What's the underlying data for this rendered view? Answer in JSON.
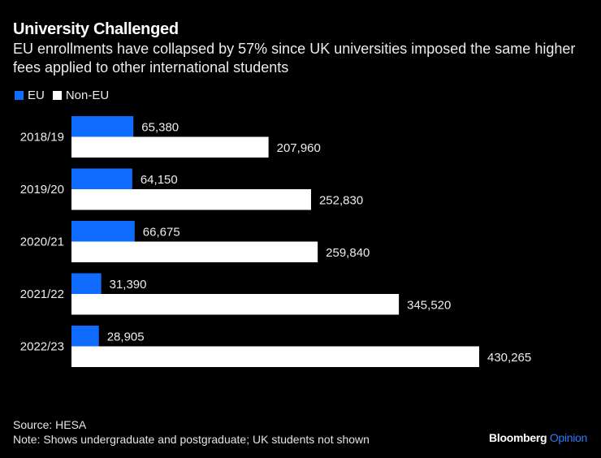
{
  "header": {
    "title": "University Challenged",
    "subtitle": "EU enrollments have collapsed by 57% since UK universities imposed the same higher fees applied to other international students"
  },
  "legend": [
    {
      "label": "EU",
      "color": "#0f6cff"
    },
    {
      "label": "Non-EU",
      "color": "#ffffff"
    }
  ],
  "footer": {
    "source": "Source: HESA",
    "note": "Note: Shows undergraduate and postgraduate; UK students not shown"
  },
  "brand": {
    "name": "Bloomberg",
    "section": "Opinion",
    "section_color": "#2f7bf5"
  },
  "chart_data": {
    "type": "bar",
    "orientation": "horizontal",
    "title": "University Challenged",
    "subtitle": "EU enrollments have collapsed by 57% since UK universities imposed the same higher fees applied to other international students",
    "categories": [
      "2018/19",
      "2019/20",
      "2020/21",
      "2021/22",
      "2022/23"
    ],
    "series": [
      {
        "name": "EU",
        "color": "#0f6cff",
        "values": [
          65380,
          64150,
          66675,
          31390,
          28905
        ],
        "labels": [
          "65,380",
          "64,150",
          "66,675",
          "31,390",
          "28,905"
        ]
      },
      {
        "name": "Non-EU",
        "color": "#ffffff",
        "values": [
          207960,
          252830,
          259840,
          345520,
          430265
        ],
        "labels": [
          "207,960",
          "252,830",
          "259,840",
          "345,520",
          "430,265"
        ]
      }
    ],
    "xlabel": "",
    "ylabel": "",
    "xlim": [
      0,
      430265
    ],
    "grid": false,
    "legend_position": "top-left",
    "data_labels": true
  }
}
